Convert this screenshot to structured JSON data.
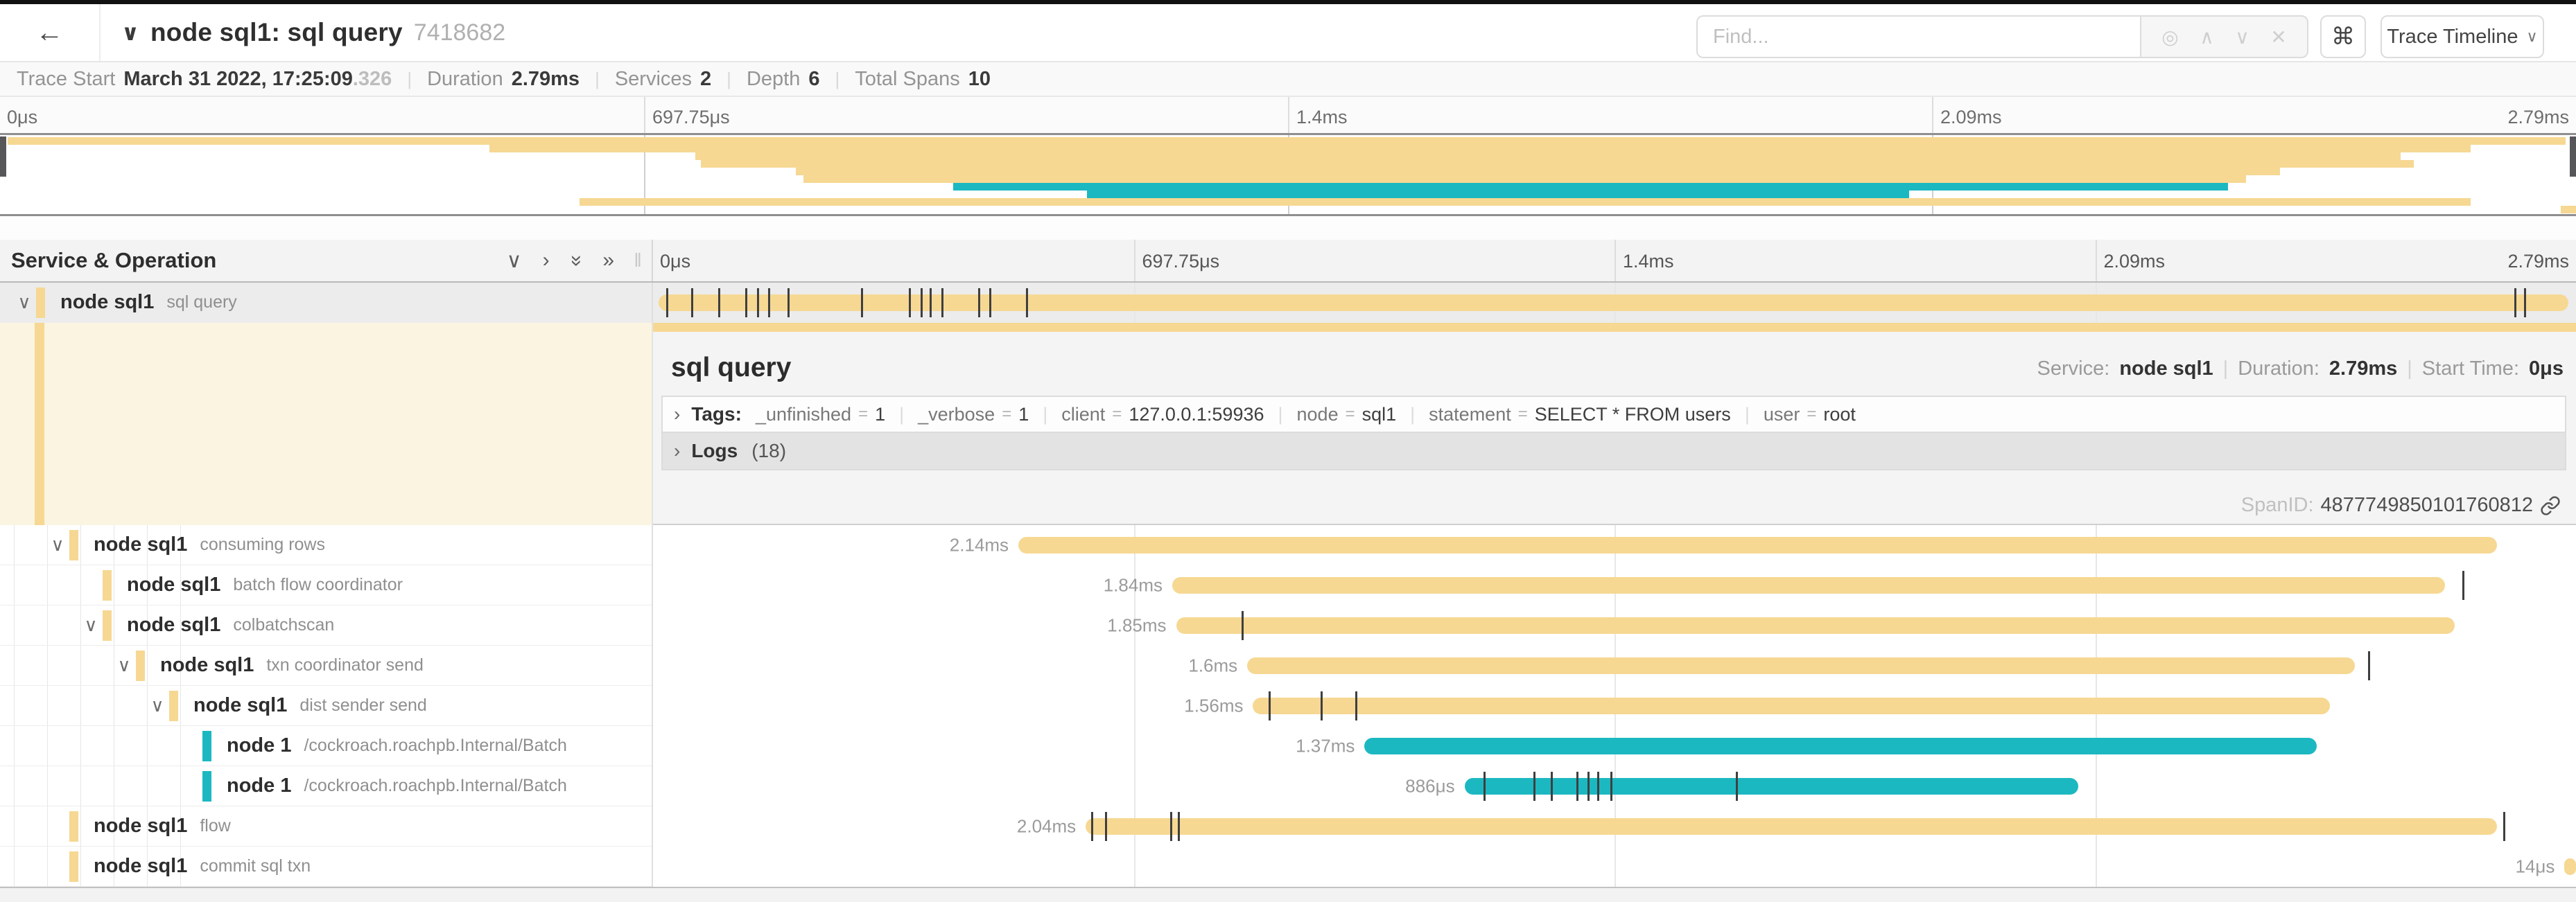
{
  "header": {
    "title": "node sql1: sql query",
    "trace_id": "7418682",
    "find_placeholder": "Find...",
    "view_button": "Trace Timeline"
  },
  "icons": {
    "back": "←",
    "chevron_down": "∨",
    "chevron_right": "›",
    "double_chevron": "»",
    "locate": "◎",
    "up": "∧",
    "down": "∨",
    "close": "✕",
    "command": "⌘",
    "resize": "‖"
  },
  "trace_info": [
    {
      "label": "Trace Start",
      "value": "March 31 2022, 17:25:09",
      "suffix": ".326"
    },
    {
      "label": "Duration",
      "value": "2.79ms"
    },
    {
      "label": "Services",
      "value": "2"
    },
    {
      "label": "Depth",
      "value": "6"
    },
    {
      "label": "Total Spans",
      "value": "10"
    }
  ],
  "ruler_ticks": [
    "0μs",
    "697.75μs",
    "1.4ms",
    "2.09ms",
    "2.79ms"
  ],
  "colors": {
    "tan": "#f6d893",
    "teal": "#1cb8c1"
  },
  "tree_header": "Service & Operation",
  "spans": [
    {
      "service": "node sql1",
      "operation": "sql query",
      "color": "tan",
      "depth": 0,
      "expander": true,
      "duration_label": "",
      "start": 0.3,
      "end": 99.6,
      "selected": true,
      "ticks": [
        0.7,
        2,
        3.4,
        4.8,
        5.4,
        6,
        7,
        10.8,
        13.3,
        13.9,
        14.4,
        15,
        16.9,
        17.5,
        19.4,
        96.8,
        97.3
      ]
    },
    {
      "service": "node sql1",
      "operation": "consuming rows",
      "color": "tan",
      "depth": 1,
      "expander": true,
      "duration_label": "2.14ms",
      "start": 19,
      "end": 95.9,
      "ticks": []
    },
    {
      "service": "node sql1",
      "operation": "batch flow coordinator",
      "color": "tan",
      "depth": 2,
      "expander": false,
      "duration_label": "1.84ms",
      "start": 27,
      "end": 93.2,
      "ticks": [
        94.1
      ]
    },
    {
      "service": "node sql1",
      "operation": "colbatchscan",
      "color": "tan",
      "depth": 2,
      "expander": true,
      "duration_label": "1.85ms",
      "start": 27.2,
      "end": 93.7,
      "ticks": [
        30.6
      ]
    },
    {
      "service": "node sql1",
      "operation": "txn coordinator send",
      "color": "tan",
      "depth": 3,
      "expander": true,
      "duration_label": "1.6ms",
      "start": 30.9,
      "end": 88.5,
      "ticks": [
        89.2
      ]
    },
    {
      "service": "node sql1",
      "operation": "dist sender send",
      "color": "tan",
      "depth": 4,
      "expander": true,
      "duration_label": "1.56ms",
      "start": 31.2,
      "end": 87.2,
      "ticks": [
        32,
        34.7,
        36.5
      ]
    },
    {
      "service": "node 1",
      "operation": "/cockroach.roachpb.Internal/Batch",
      "color": "teal",
      "depth": 5,
      "expander": false,
      "duration_label": "1.37ms",
      "start": 37,
      "end": 86.5,
      "ticks": []
    },
    {
      "service": "node 1",
      "operation": "/cockroach.roachpb.Internal/Batch",
      "color": "teal",
      "depth": 5,
      "expander": false,
      "duration_label": "886μs",
      "start": 42.2,
      "end": 74.1,
      "ticks": [
        43.2,
        45.8,
        46.7,
        48,
        48.6,
        49.1,
        49.8,
        56.3
      ]
    },
    {
      "service": "node sql1",
      "operation": "flow",
      "color": "tan",
      "depth": 1,
      "expander": false,
      "duration_label": "2.04ms",
      "start": 22.5,
      "end": 95.9,
      "ticks": [
        22.8,
        23.5,
        26.9,
        27.3,
        96.2
      ]
    },
    {
      "service": "node sql1",
      "operation": "commit sql txn",
      "color": "tan",
      "depth": 1,
      "expander": false,
      "duration_label": "14μs",
      "start": 99.4,
      "end": 100,
      "ticks": []
    }
  ],
  "detail": {
    "title": "sql query",
    "service_label": "Service:",
    "service_value": "node sql1",
    "duration_label": "Duration:",
    "duration_value": "2.79ms",
    "start_label": "Start Time:",
    "start_value": "0μs",
    "tags_label": "Tags:",
    "tags": [
      {
        "key": "_unfinished",
        "value": "1"
      },
      {
        "key": "_verbose",
        "value": "1"
      },
      {
        "key": "client",
        "value": "127.0.0.1:59936"
      },
      {
        "key": "node",
        "value": "sql1"
      },
      {
        "key": "statement",
        "value": "SELECT * FROM users"
      },
      {
        "key": "user",
        "value": "root"
      }
    ],
    "logs_label": "Logs",
    "logs_count": "(18)",
    "spanid_label": "SpanID:",
    "spanid_value": "4877749850101760812"
  }
}
